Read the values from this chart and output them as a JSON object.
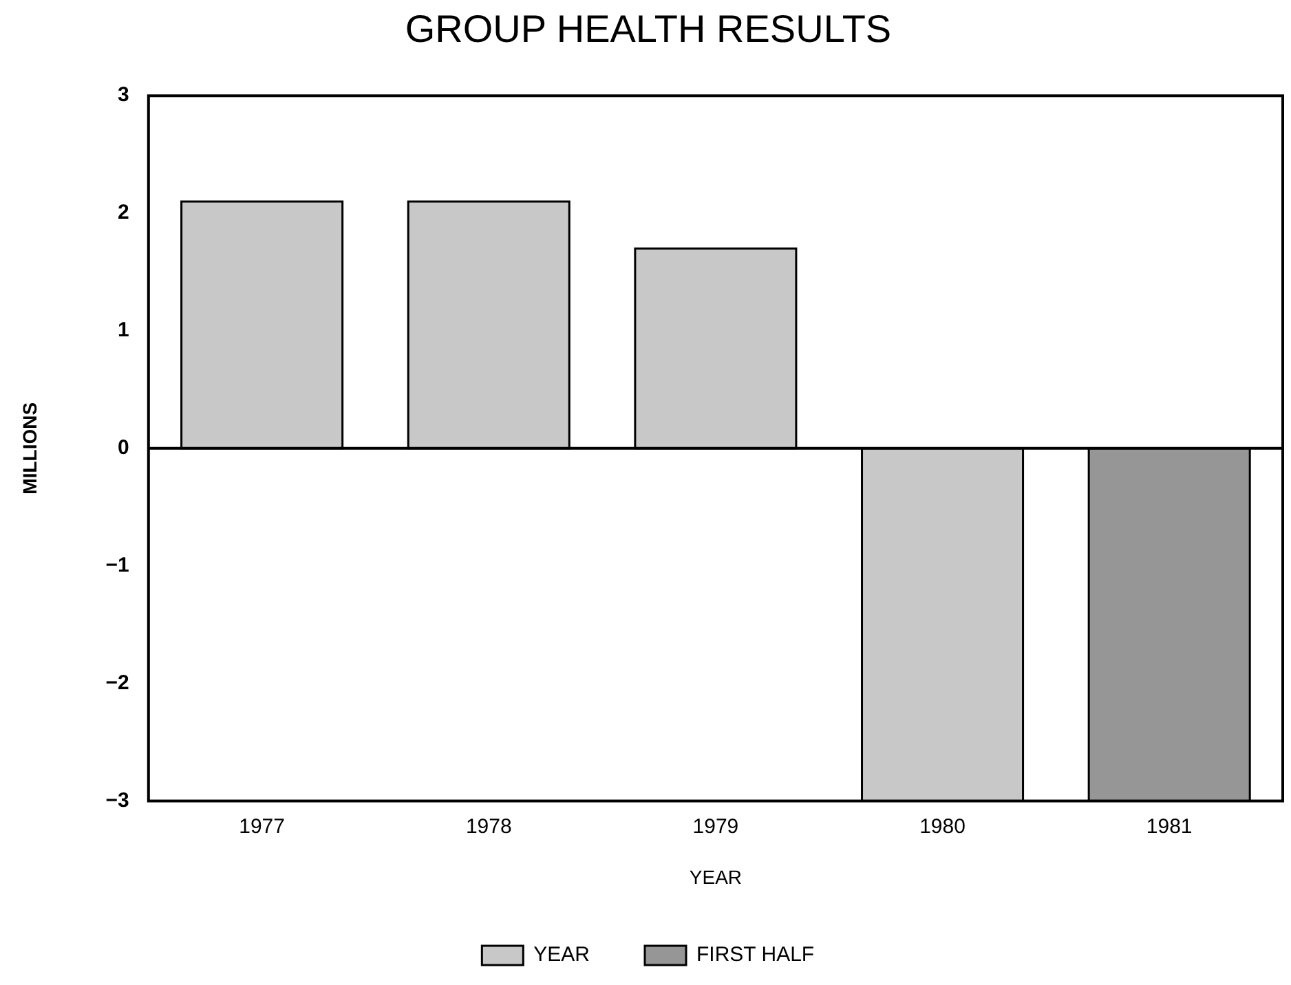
{
  "chart_data": {
    "type": "bar",
    "title": "GROUP HEALTH RESULTS",
    "xlabel": "YEAR",
    "ylabel": "MILLIONS",
    "categories": [
      "1977",
      "1978",
      "1979",
      "1980",
      "1981"
    ],
    "series": [
      {
        "name": "YEAR",
        "color": "#c8c8c8",
        "values": [
          2.1,
          2.1,
          1.7,
          -3,
          null
        ]
      },
      {
        "name": "FIRST HALF",
        "color": "#969696",
        "values": [
          null,
          null,
          null,
          null,
          -3
        ]
      }
    ],
    "ylim": [
      -3,
      3
    ],
    "yticks": [
      -3,
      -2,
      -1,
      0,
      1,
      2,
      3
    ],
    "grid": false,
    "ref_lines": [
      {
        "axis": "y",
        "value": 0,
        "color": "#000000"
      }
    ],
    "legend": "bottom"
  }
}
